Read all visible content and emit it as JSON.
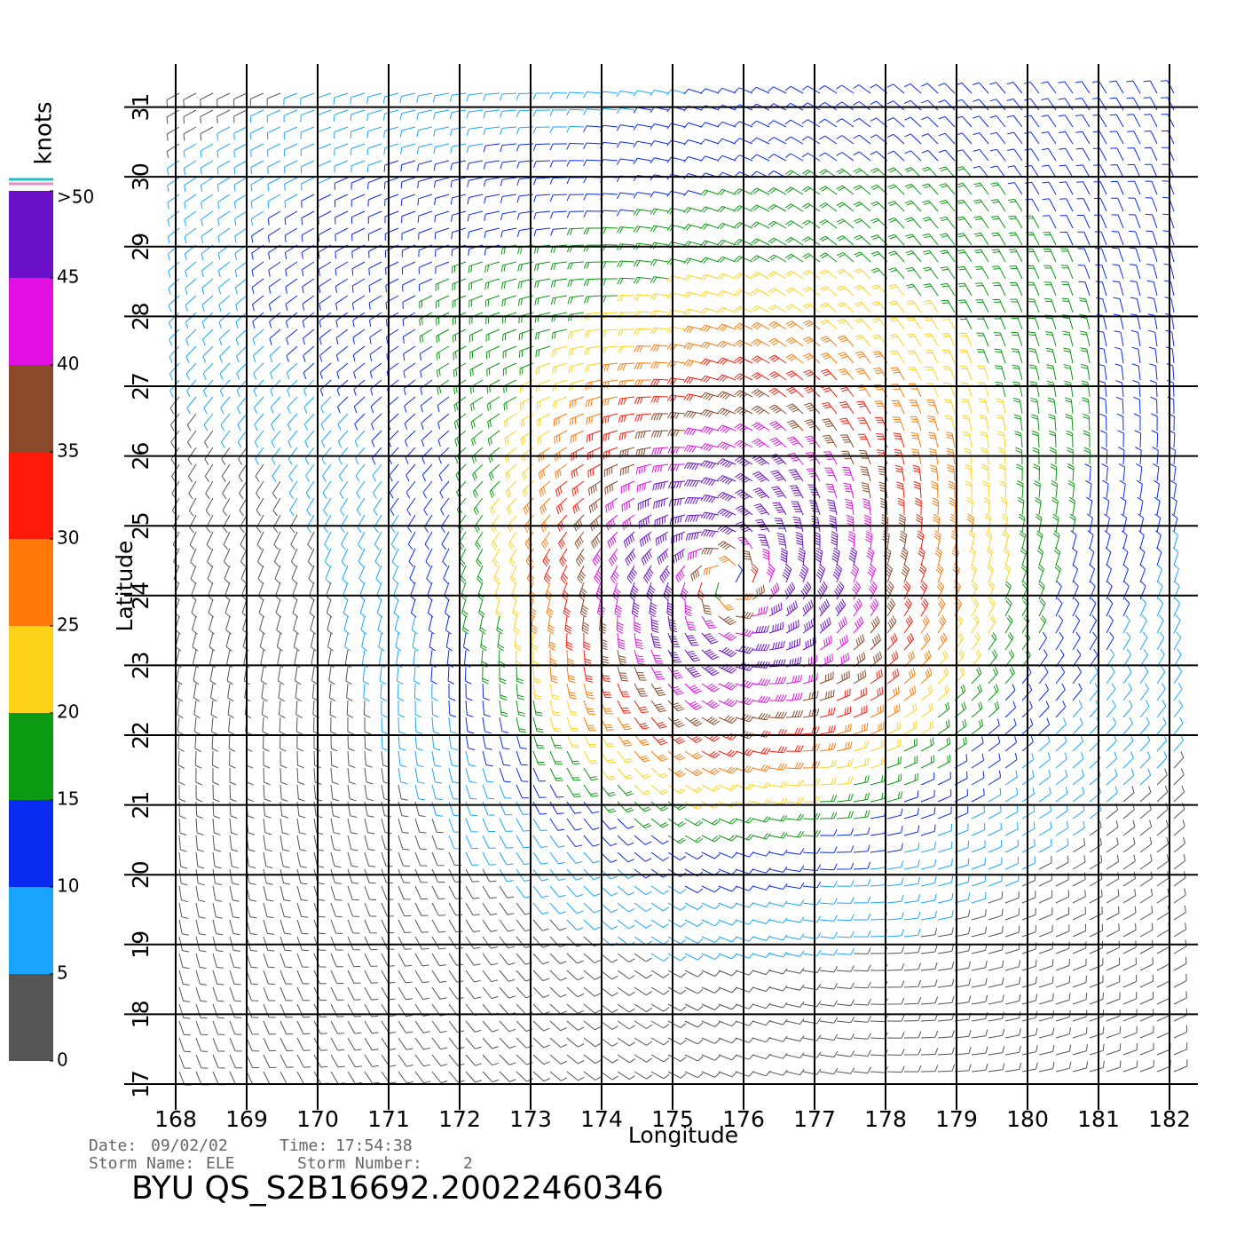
{
  "chart_data": {
    "type": "windmap",
    "xlabel": "Longitude",
    "ylabel": "Latitude",
    "xlim": [
      168,
      182.4
    ],
    "ylim": [
      17,
      31.3
    ],
    "xticks": [
      168,
      169,
      170,
      171,
      172,
      173,
      174,
      175,
      176,
      177,
      178,
      179,
      180,
      181,
      182
    ],
    "yticks": [
      17,
      18,
      19,
      20,
      21,
      22,
      23,
      24,
      25,
      26,
      27,
      28,
      29,
      30,
      31
    ],
    "grid": true,
    "colorbar": {
      "title": "knots",
      "clim": [
        0,
        50
      ],
      "ticks": [
        0,
        5,
        10,
        15,
        20,
        25,
        30,
        35,
        40,
        45,
        {
          "value": 50,
          "label": ">50"
        }
      ],
      "colors": [
        "#555555",
        "#1aa6ff",
        "#0a2cf0",
        "#0b9a12",
        "#ffd21a",
        "#ff7a0a",
        "#ff1a0a",
        "#8a4a2a",
        "#e010e0",
        "#6a10c8"
      ]
    },
    "footer": {
      "date_label": "Date:",
      "date": "09/02/02",
      "time_label": "Time:",
      "time": "17:54:38",
      "storm_name_label": "Storm Name:",
      "storm_name": "ELE",
      "storm_number_label": "Storm Number:",
      "storm_number": "2",
      "title": "BYU QS_S2B16692.20022460346"
    }
  }
}
